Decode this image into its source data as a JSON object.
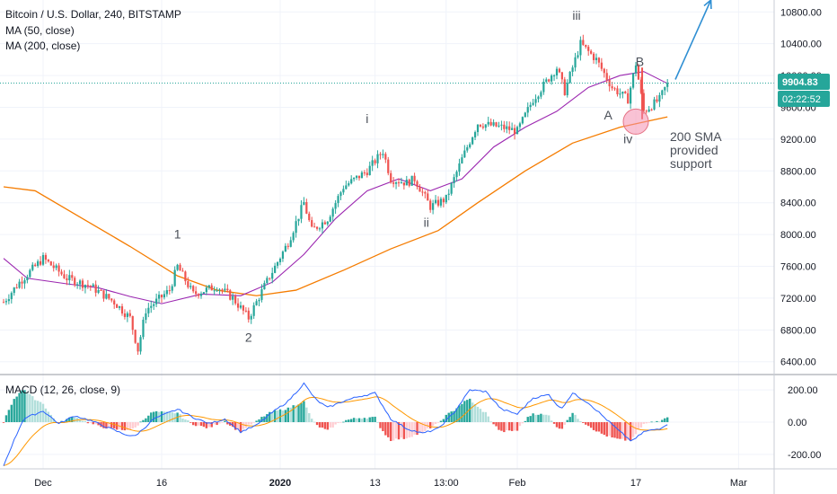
{
  "chart_data": {
    "type": "candlestick",
    "title": "Bitcoin / U.S. Dollar, 240, BITSTAMP",
    "symbol": "Bitcoin / U.S. Dollar",
    "interval": "240",
    "exchange": "BITSTAMP",
    "legend": [
      "MA (50, close)",
      "MA (200, close)"
    ],
    "price_axis": {
      "ticks": [
        "6400.00",
        "6800.00",
        "7200.00",
        "7600.00",
        "8000.00",
        "8400.00",
        "8800.00",
        "9200.00",
        "9600.00",
        "10000.00",
        "10400.00",
        "10800.00"
      ],
      "ylim": [
        6250,
        10950
      ]
    },
    "time_axis": {
      "labels": [
        {
          "text": "Dec",
          "bold": false
        },
        {
          "text": "16",
          "bold": false
        },
        {
          "text": "2020",
          "bold": true
        },
        {
          "text": "13",
          "bold": false
        },
        {
          "text": "13:00",
          "bold": false
        },
        {
          "text": "Feb",
          "bold": false
        },
        {
          "text": "17",
          "bold": false
        },
        {
          "text": "Mar",
          "bold": false
        }
      ]
    },
    "last_price": {
      "value": "9904.83",
      "countdown": "02:22:52",
      "color": "#26a69a"
    },
    "price_anchors": [
      {
        "day": 0,
        "price": 7150
      },
      {
        "day": 2,
        "price": 7400
      },
      {
        "day": 5,
        "price": 7700
      },
      {
        "day": 8,
        "price": 7450
      },
      {
        "day": 11,
        "price": 7350
      },
      {
        "day": 14,
        "price": 7150
      },
      {
        "day": 16,
        "price": 6950
      },
      {
        "day": 17,
        "price": 6550
      },
      {
        "day": 18,
        "price": 7050
      },
      {
        "day": 21,
        "price": 7300
      },
      {
        "day": 22,
        "price": 7600
      },
      {
        "day": 24,
        "price": 7250
      },
      {
        "day": 27,
        "price": 7350
      },
      {
        "day": 29,
        "price": 7200
      },
      {
        "day": 31,
        "price": 6950
      },
      {
        "day": 33,
        "price": 7350
      },
      {
        "day": 36,
        "price": 7900
      },
      {
        "day": 38,
        "price": 8400
      },
      {
        "day": 39,
        "price": 8050
      },
      {
        "day": 41,
        "price": 8200
      },
      {
        "day": 43,
        "price": 8600
      },
      {
        "day": 46,
        "price": 8800
      },
      {
        "day": 48,
        "price": 9050
      },
      {
        "day": 49,
        "price": 8700
      },
      {
        "day": 51,
        "price": 8650
      },
      {
        "day": 52,
        "price": 8700
      },
      {
        "day": 54,
        "price": 8350
      },
      {
        "day": 56,
        "price": 8450
      },
      {
        "day": 58,
        "price": 8950
      },
      {
        "day": 60,
        "price": 9400
      },
      {
        "day": 63,
        "price": 9350
      },
      {
        "day": 65,
        "price": 9300
      },
      {
        "day": 67,
        "price": 9700
      },
      {
        "day": 70,
        "price": 10100
      },
      {
        "day": 71,
        "price": 9800
      },
      {
        "day": 73,
        "price": 10400
      },
      {
        "day": 75,
        "price": 10200
      },
      {
        "day": 77,
        "price": 9850
      },
      {
        "day": 79,
        "price": 9700
      },
      {
        "day": 80,
        "price": 10150
      },
      {
        "day": 81,
        "price": 9550
      },
      {
        "day": 83,
        "price": 9700
      },
      {
        "day": 84,
        "price": 9905
      }
    ],
    "ma50_anchors": [
      {
        "day": 0,
        "price": 7700
      },
      {
        "day": 3,
        "price": 7450
      },
      {
        "day": 8,
        "price": 7380
      },
      {
        "day": 12,
        "price": 7330
      },
      {
        "day": 16,
        "price": 7220
      },
      {
        "day": 20,
        "price": 7130
      },
      {
        "day": 25,
        "price": 7250
      },
      {
        "day": 30,
        "price": 7230
      },
      {
        "day": 34,
        "price": 7400
      },
      {
        "day": 38,
        "price": 7750
      },
      {
        "day": 42,
        "price": 8200
      },
      {
        "day": 46,
        "price": 8550
      },
      {
        "day": 50,
        "price": 8700
      },
      {
        "day": 54,
        "price": 8550
      },
      {
        "day": 58,
        "price": 8700
      },
      {
        "day": 62,
        "price": 9100
      },
      {
        "day": 66,
        "price": 9350
      },
      {
        "day": 70,
        "price": 9550
      },
      {
        "day": 74,
        "price": 9850
      },
      {
        "day": 78,
        "price": 10000
      },
      {
        "day": 81,
        "price": 10050
      },
      {
        "day": 84,
        "price": 9900
      }
    ],
    "ma200_anchors": [
      {
        "day": 0,
        "price": 8600
      },
      {
        "day": 4,
        "price": 8550
      },
      {
        "day": 10,
        "price": 8200
      },
      {
        "day": 16,
        "price": 7850
      },
      {
        "day": 22,
        "price": 7480
      },
      {
        "day": 27,
        "price": 7300
      },
      {
        "day": 32,
        "price": 7230
      },
      {
        "day": 37,
        "price": 7300
      },
      {
        "day": 43,
        "price": 7550
      },
      {
        "day": 49,
        "price": 7820
      },
      {
        "day": 55,
        "price": 8050
      },
      {
        "day": 60,
        "price": 8400
      },
      {
        "day": 66,
        "price": 8800
      },
      {
        "day": 72,
        "price": 9150
      },
      {
        "day": 78,
        "price": 9350
      },
      {
        "day": 84,
        "price": 9480
      }
    ],
    "wave_labels": [
      {
        "text": "1",
        "day": 22,
        "price": 7950
      },
      {
        "text": "2",
        "day": 31,
        "price": 6650
      },
      {
        "text": "i",
        "day": 46,
        "price": 9400
      },
      {
        "text": "ii",
        "day": 53.5,
        "price": 8100
      },
      {
        "text": "iii",
        "day": 72.5,
        "price": 10700
      },
      {
        "text": "iv",
        "day": 79,
        "price": 9150
      },
      {
        "text": "A",
        "day": 76.5,
        "price": 9450
      },
      {
        "text": "B",
        "day": 80.5,
        "price": 10120
      }
    ],
    "annotation": {
      "lines": [
        "200 SMA",
        "provided",
        "support"
      ],
      "circle": {
        "day": 80,
        "price": 9420,
        "fill": "#f48fb1",
        "stroke": "#e57385"
      },
      "text_day": 82.5,
      "text_price": 9240
    },
    "arrow": {
      "from_day": 85,
      "to_day": 89.5,
      "from_price": 9950,
      "to_price": 10950,
      "color": "#2f8fd3"
    },
    "drop_line": {
      "day": 80.8,
      "top_price": 10100,
      "bottom_price": 9450,
      "color": "#ef5350"
    },
    "colors": {
      "up": "#26a69a",
      "down": "#ef5350",
      "ma50": "#9c27b0",
      "ma200": "#f57c00",
      "last_price_line": "#26a69a"
    },
    "macd": {
      "label": "MACD (12, 26, close, 9)",
      "ticks": [
        "200.00",
        "0.00",
        "-200.00"
      ],
      "ylim": [
        -290,
        290
      ],
      "macd_color": "#2962ff",
      "signal_color": "#ff9800",
      "macd_anchors": [
        {
          "day": 0,
          "v": -270
        },
        {
          "day": 1,
          "v": -150
        },
        {
          "day": 2.5,
          "v": 20
        },
        {
          "day": 5,
          "v": 70
        },
        {
          "day": 7,
          "v": -10
        },
        {
          "day": 9,
          "v": 40
        },
        {
          "day": 11,
          "v": 10
        },
        {
          "day": 13,
          "v": -30
        },
        {
          "day": 15,
          "v": -70
        },
        {
          "day": 16.5,
          "v": -90
        },
        {
          "day": 17.5,
          "v": -50
        },
        {
          "day": 19,
          "v": 20
        },
        {
          "day": 22,
          "v": 80
        },
        {
          "day": 24,
          "v": 30
        },
        {
          "day": 26,
          "v": -10
        },
        {
          "day": 28,
          "v": 20
        },
        {
          "day": 30,
          "v": -60
        },
        {
          "day": 32,
          "v": -20
        },
        {
          "day": 34,
          "v": 60
        },
        {
          "day": 36,
          "v": 130
        },
        {
          "day": 38,
          "v": 240
        },
        {
          "day": 39.5,
          "v": 140
        },
        {
          "day": 41,
          "v": 90
        },
        {
          "day": 43,
          "v": 130
        },
        {
          "day": 45,
          "v": 160
        },
        {
          "day": 47,
          "v": 180
        },
        {
          "day": 49,
          "v": 20
        },
        {
          "day": 51,
          "v": -40
        },
        {
          "day": 53,
          "v": -70
        },
        {
          "day": 55,
          "v": -40
        },
        {
          "day": 57,
          "v": 60
        },
        {
          "day": 59,
          "v": 200
        },
        {
          "day": 61,
          "v": 190
        },
        {
          "day": 63,
          "v": 80
        },
        {
          "day": 65,
          "v": 50
        },
        {
          "day": 67,
          "v": 150
        },
        {
          "day": 69,
          "v": 170
        },
        {
          "day": 70.5,
          "v": 80
        },
        {
          "day": 72,
          "v": 180
        },
        {
          "day": 74,
          "v": 120
        },
        {
          "day": 76,
          "v": 30
        },
        {
          "day": 78,
          "v": -60
        },
        {
          "day": 79.5,
          "v": -120
        },
        {
          "day": 81,
          "v": -60
        },
        {
          "day": 83,
          "v": -40
        },
        {
          "day": 84,
          "v": -10
        }
      ]
    }
  }
}
